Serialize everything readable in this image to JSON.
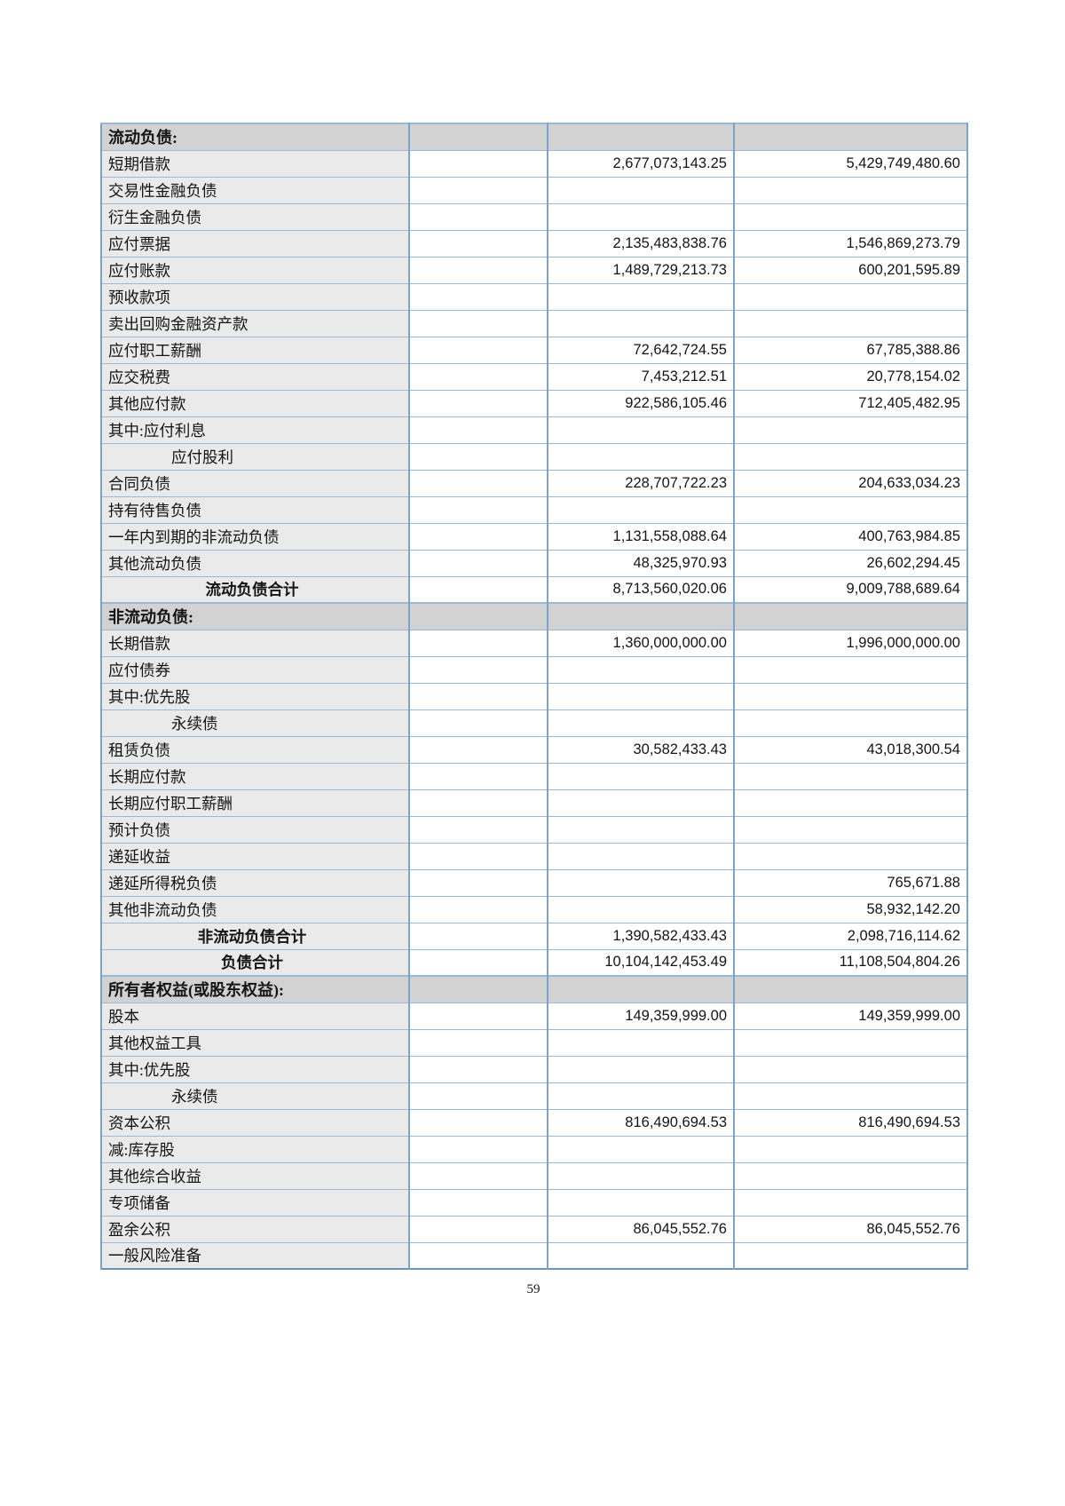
{
  "page": {
    "number": "59"
  },
  "colors": {
    "outer_border": "#6d92b5",
    "vertical_border": "#7da3c6",
    "horizontal_border": "#9bb9d6",
    "section_row_bg": "#d2d2d2",
    "label_cell_bg": "#eaeaea"
  },
  "table": {
    "columns": [
      "item",
      "note",
      "current_amount",
      "prior_amount"
    ],
    "rows": [
      {
        "type": "section",
        "label": "流动负债:",
        "current": "",
        "prior": ""
      },
      {
        "type": "item",
        "label": "短期借款",
        "current": "2,677,073,143.25",
        "prior": "5,429,749,480.60"
      },
      {
        "type": "item",
        "label": "交易性金融负债",
        "current": "",
        "prior": ""
      },
      {
        "type": "item",
        "label": "衍生金融负债",
        "current": "",
        "prior": ""
      },
      {
        "type": "item",
        "label": "应付票据",
        "current": "2,135,483,838.76",
        "prior": "1,546,869,273.79"
      },
      {
        "type": "item",
        "label": "应付账款",
        "current": "1,489,729,213.73",
        "prior": "600,201,595.89"
      },
      {
        "type": "item",
        "label": "预收款项",
        "current": "",
        "prior": ""
      },
      {
        "type": "item",
        "label": "卖出回购金融资产款",
        "current": "",
        "prior": ""
      },
      {
        "type": "item",
        "label": "应付职工薪酬",
        "current": "72,642,724.55",
        "prior": "67,785,388.86"
      },
      {
        "type": "item",
        "label": "应交税费",
        "current": "7,453,212.51",
        "prior": "20,778,154.02"
      },
      {
        "type": "item",
        "label": "其他应付款",
        "current": "922,586,105.46",
        "prior": "712,405,482.95"
      },
      {
        "type": "item",
        "label": "其中:应付利息",
        "current": "",
        "prior": ""
      },
      {
        "type": "item",
        "indent": 1,
        "label": "应付股利",
        "current": "",
        "prior": ""
      },
      {
        "type": "item",
        "label": "合同负债",
        "current": "228,707,722.23",
        "prior": "204,633,034.23"
      },
      {
        "type": "item",
        "label": "持有待售负债",
        "current": "",
        "prior": ""
      },
      {
        "type": "item",
        "label": "一年内到期的非流动负债",
        "current": "1,131,558,088.64",
        "prior": "400,763,984.85"
      },
      {
        "type": "item",
        "label": "其他流动负债",
        "current": "48,325,970.93",
        "prior": "26,602,294.45"
      },
      {
        "type": "total",
        "label": "流动负债合计",
        "current": "8,713,560,020.06",
        "prior": "9,009,788,689.64"
      },
      {
        "type": "section",
        "label": "非流动负债:",
        "current": "",
        "prior": ""
      },
      {
        "type": "item",
        "label": "长期借款",
        "current": "1,360,000,000.00",
        "prior": "1,996,000,000.00"
      },
      {
        "type": "item",
        "label": "应付债券",
        "current": "",
        "prior": ""
      },
      {
        "type": "item",
        "label": "其中:优先股",
        "current": "",
        "prior": ""
      },
      {
        "type": "item",
        "indent": 1,
        "label": "永续债",
        "current": "",
        "prior": ""
      },
      {
        "type": "item",
        "label": "租赁负债",
        "current": "30,582,433.43",
        "prior": "43,018,300.54"
      },
      {
        "type": "item",
        "label": "长期应付款",
        "current": "",
        "prior": ""
      },
      {
        "type": "item",
        "label": "长期应付职工薪酬",
        "current": "",
        "prior": ""
      },
      {
        "type": "item",
        "label": "预计负债",
        "current": "",
        "prior": ""
      },
      {
        "type": "item",
        "label": "递延收益",
        "current": "",
        "prior": ""
      },
      {
        "type": "item",
        "label": "递延所得税负债",
        "current": "",
        "prior": "765,671.88"
      },
      {
        "type": "item",
        "label": "其他非流动负债",
        "current": "",
        "prior": "58,932,142.20"
      },
      {
        "type": "total",
        "label": "非流动负债合计",
        "current": "1,390,582,433.43",
        "prior": "2,098,716,114.62"
      },
      {
        "type": "total",
        "label": "负债合计",
        "current": "10,104,142,453.49",
        "prior": "11,108,504,804.26"
      },
      {
        "type": "section",
        "label": "所有者权益(或股东权益):",
        "current": "",
        "prior": ""
      },
      {
        "type": "item",
        "label": "股本",
        "current": "149,359,999.00",
        "prior": "149,359,999.00"
      },
      {
        "type": "item",
        "label": "其他权益工具",
        "current": "",
        "prior": ""
      },
      {
        "type": "item",
        "label": "其中:优先股",
        "current": "",
        "prior": ""
      },
      {
        "type": "item",
        "indent": 1,
        "label": "永续债",
        "current": "",
        "prior": ""
      },
      {
        "type": "item",
        "label": "资本公积",
        "current": "816,490,694.53",
        "prior": "816,490,694.53"
      },
      {
        "type": "item",
        "label": "减:库存股",
        "current": "",
        "prior": ""
      },
      {
        "type": "item",
        "label": "其他综合收益",
        "current": "",
        "prior": ""
      },
      {
        "type": "item",
        "label": "专项储备",
        "current": "",
        "prior": ""
      },
      {
        "type": "item",
        "label": "盈余公积",
        "current": "86,045,552.76",
        "prior": "86,045,552.76"
      },
      {
        "type": "item",
        "label": "一般风险准备",
        "current": "",
        "prior": ""
      }
    ]
  }
}
